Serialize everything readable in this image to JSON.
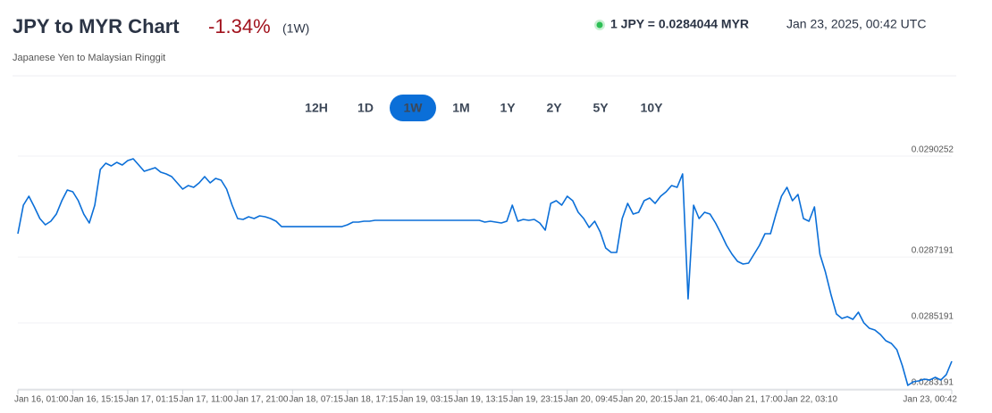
{
  "header": {
    "title": "JPY to MYR Chart",
    "change": "-1.34%",
    "period": "(1W)",
    "subtitle": "Japanese Yen to Malaysian Ringgit",
    "rate": "1 JPY = 0.0284044 MYR",
    "timestamp": "Jan 23, 2025, 00:42 UTC"
  },
  "range_buttons": [
    {
      "label": "12H",
      "active": false
    },
    {
      "label": "1D",
      "active": false
    },
    {
      "label": "1W",
      "active": true
    },
    {
      "label": "1M",
      "active": false
    },
    {
      "label": "1Y",
      "active": false
    },
    {
      "label": "2Y",
      "active": false
    },
    {
      "label": "5Y",
      "active": false
    },
    {
      "label": "10Y",
      "active": false
    }
  ],
  "chart_data": {
    "type": "line",
    "color": "#0b6fd8",
    "grid": true,
    "values": [
      0.0287708,
      0.0288574,
      0.0288845,
      0.028852,
      0.0288168,
      0.0287979,
      0.0288087,
      0.0288303,
      0.0288709,
      0.0289034,
      0.028898,
      0.0288709,
      0.0288303,
      0.0288033,
      0.0288574,
      0.0289657,
      0.0289846,
      0.0289765,
      0.0289873,
      0.0289792,
      0.0289927,
      0.0289981,
      0.0289792,
      0.0289602,
      0.0289657,
      0.0289711,
      0.0289575,
      0.0289521,
      0.028944,
      0.0289251,
      0.0289061,
      0.0289169,
      0.0289115,
      0.0289251,
      0.028944,
      0.0289251,
      0.0289386,
      0.0289332,
      0.0289061,
      0.0288574,
      0.0288168,
      0.0288141,
      0.0288222,
      0.0288168,
      0.0288249,
      0.0288222,
      0.0288168,
      0.0288087,
      0.0287924,
      0.0287924,
      0.0287924,
      0.0287924,
      0.0287924,
      0.0287924,
      0.0287924,
      0.0287924,
      0.0287924,
      0.0287924,
      0.0287924,
      0.0287924,
      0.0287979,
      0.028806,
      0.028806,
      0.0288087,
      0.0288087,
      0.0288114,
      0.0288114,
      0.0288114,
      0.0288114,
      0.0288114,
      0.0288114,
      0.0288114,
      0.0288114,
      0.0288114,
      0.0288114,
      0.0288114,
      0.0288114,
      0.0288114,
      0.0288114,
      0.0288114,
      0.0288114,
      0.0288114,
      0.0288114,
      0.0288114,
      0.0288114,
      0.028806,
      0.0288087,
      0.028806,
      0.0288033,
      0.0288087,
      0.0288574,
      0.0288087,
      0.0288141,
      0.0288114,
      0.0288141,
      0.0288033,
      0.0287816,
      0.0288628,
      0.0288709,
      0.0288574,
      0.0288845,
      0.0288709,
      0.0288358,
      0.0288168,
      0.0287897,
      0.0288087,
      0.0287762,
      0.0287275,
      0.028714,
      0.028714,
      0.0288168,
      0.0288628,
      0.0288303,
      0.0288358,
      0.0288709,
      0.0288791,
      0.0288628,
      0.0288845,
      0.028898,
      0.0289169,
      0.0289115,
      0.0289521,
      0.0285732,
      0.0288574,
      0.0288168,
      0.0288358,
      0.0288303,
      0.0288033,
      0.0287708,
      0.0287356,
      0.0287086,
      0.0286869,
      0.0286788,
      0.0286815,
      0.0287086,
      0.0287356,
      0.0287708,
      0.0287708,
      0.0288303,
      0.0288845,
      0.0289115,
      0.0288709,
      0.0288899,
      0.0288168,
      0.0288087,
      0.028852,
      0.0287086,
      0.0286544,
      0.0285868,
      0.0285272,
      0.0285137,
      0.0285191,
      0.028511,
      0.0285326,
      0.0285002,
      0.0284839,
      0.0284785,
      0.028465,
      0.028446,
      0.0284379,
      0.028419,
      0.0283703,
      0.0283107,
      0.0283215,
      0.0283242,
      0.0283297,
      0.0283269,
      0.0283351,
      0.0283269,
      0.0283432,
      0.0283838
    ],
    "xlim": [
      0,
      170
    ],
    "xticks": [
      {
        "value": 0,
        "label": "Jan 16, 01:00"
      },
      {
        "value": 10,
        "label": "Jan 16, 15:15"
      },
      {
        "value": 20,
        "label": "Jan 17, 01:15"
      },
      {
        "value": 30,
        "label": "Jan 17, 11:00"
      },
      {
        "value": 40,
        "label": "Jan 17, 21:00"
      },
      {
        "value": 50,
        "label": "Jan 18, 07:15"
      },
      {
        "value": 60,
        "label": "Jan 18, 17:15"
      },
      {
        "value": 70,
        "label": "Jan 19, 03:15"
      },
      {
        "value": 80,
        "label": "Jan 19, 13:15"
      },
      {
        "value": 90,
        "label": "Jan 19, 23:15"
      },
      {
        "value": 100,
        "label": "Jan 20, 09:45"
      },
      {
        "value": 110,
        "label": "Jan 20, 20:15"
      },
      {
        "value": 120,
        "label": "Jan 21, 06:40"
      },
      {
        "value": 130,
        "label": "Jan 21, 17:00"
      },
      {
        "value": 140,
        "label": "Jan 22, 03:10"
      },
      {
        "value": 170,
        "label": "Jan 23, 00:42"
      }
    ],
    "ylim": [
      0.0282972,
      0.0290252
    ],
    "yticks": [
      0.0283191,
      0.0285191,
      0.0287191,
      0.0290252
    ]
  }
}
